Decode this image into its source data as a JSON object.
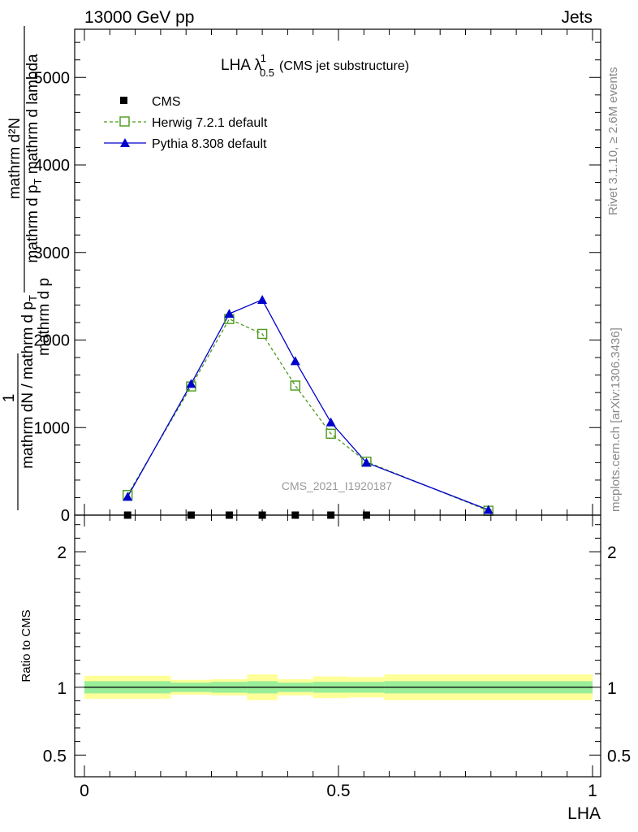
{
  "header": {
    "energy_label": "13000 GeV pp",
    "category_label": "Jets"
  },
  "side_labels": {
    "rivet": "Rivet 3.1.10, ≥ 2.6M events",
    "mcplots": "mcplots.cern.ch [arXiv:1306.3436]"
  },
  "watermark": "CMS_2021_I1920187",
  "colors": {
    "cms": "#000000",
    "herwig": "#4a9a1a",
    "pythia": "#0000cc",
    "band_inner": "#99ee99",
    "band_outer": "#ffff99"
  },
  "chart_data": [
    {
      "type": "line",
      "title_main": "LHA λ",
      "title_sup": "1",
      "title_sub": "0.5",
      "title_suffix": "(CMS jet substructure)",
      "ylabel_top_num": "mathrm d²N",
      "ylabel_top_den": "mathrm d p_T mathrm d lambda",
      "ylabel_top_den_mid": "mathrm d p",
      "ylabel_top_den_sub": "T",
      "ylabel_top_den_end": " mathrm d lambda",
      "ylabel_one": "1",
      "ylabel_bot_den": "mathrm dN / mathrm d p",
      "ylabel_bot_den_sub": "T",
      "ylabel_bot_den_tail": "mathrm d p",
      "xlim": [
        0,
        1
      ],
      "ylim": [
        0,
        5550
      ],
      "yticks": [
        {
          "v": 0,
          "label": "0"
        },
        {
          "v": 1000,
          "label": "1000"
        },
        {
          "v": 2000,
          "label": "2000"
        },
        {
          "v": 3000,
          "label": "3000"
        },
        {
          "v": 4000,
          "label": "4000"
        },
        {
          "v": 5000,
          "label": "5000"
        }
      ],
      "legend": {
        "placement": "top-left",
        "cms": "CMS",
        "herwig": "Herwig 7.2.1 default",
        "pythia": "Pythia 8.308 default"
      },
      "series": [
        {
          "name": "CMS",
          "marker": "square-filled",
          "x": [
            0.085,
            0.21,
            0.285,
            0.35,
            0.415,
            0.485,
            0.555
          ],
          "values": [
            0,
            0,
            0,
            0,
            0,
            0,
            0
          ]
        },
        {
          "name": "Herwig 7.2.1 default",
          "marker": "square-open",
          "style": "dashed",
          "x": [
            0.085,
            0.21,
            0.285,
            0.35,
            0.415,
            0.485,
            0.555,
            0.795
          ],
          "values": [
            230,
            1470,
            2240,
            2070,
            1480,
            930,
            610,
            50
          ]
        },
        {
          "name": "Pythia 8.308 default",
          "marker": "triangle",
          "style": "solid",
          "x": [
            0.085,
            0.21,
            0.285,
            0.35,
            0.415,
            0.485,
            0.555,
            0.795
          ],
          "values": [
            210,
            1500,
            2300,
            2460,
            1760,
            1060,
            600,
            60
          ]
        }
      ]
    },
    {
      "type": "area",
      "ylabel": "Ratio to CMS",
      "xlabel": "LHA",
      "xlim": [
        0,
        1
      ],
      "ylim": [
        0.34,
        2.27
      ],
      "xticks": [
        {
          "v": 0,
          "label": "0"
        },
        {
          "v": 0.5,
          "label": "0.5"
        },
        {
          "v": 1,
          "label": "1"
        }
      ],
      "yticks": [
        {
          "v": 0.5,
          "label": "0.5"
        },
        {
          "v": 1,
          "label": "1"
        },
        {
          "v": 2,
          "label": "2"
        }
      ],
      "bins": [
        {
          "lo": 0.0,
          "hi": 0.17,
          "inner": [
            0.955,
            1.045
          ],
          "outer": [
            0.915,
            1.085
          ]
        },
        {
          "lo": 0.17,
          "hi": 0.25,
          "inner": [
            0.965,
            1.035
          ],
          "outer": [
            0.945,
            1.055
          ]
        },
        {
          "lo": 0.25,
          "hi": 0.32,
          "inner": [
            0.96,
            1.04
          ],
          "outer": [
            0.94,
            1.06
          ]
        },
        {
          "lo": 0.32,
          "hi": 0.38,
          "inner": [
            0.955,
            1.045
          ],
          "outer": [
            0.905,
            1.095
          ]
        },
        {
          "lo": 0.38,
          "hi": 0.45,
          "inner": [
            0.965,
            1.035
          ],
          "outer": [
            0.94,
            1.06
          ]
        },
        {
          "lo": 0.45,
          "hi": 0.52,
          "inner": [
            0.96,
            1.04
          ],
          "outer": [
            0.92,
            1.08
          ]
        },
        {
          "lo": 0.52,
          "hi": 0.59,
          "inner": [
            0.96,
            1.04
          ],
          "outer": [
            0.925,
            1.075
          ]
        },
        {
          "lo": 0.59,
          "hi": 1.0,
          "inner": [
            0.955,
            1.045
          ],
          "outer": [
            0.905,
            1.095
          ]
        }
      ]
    }
  ]
}
